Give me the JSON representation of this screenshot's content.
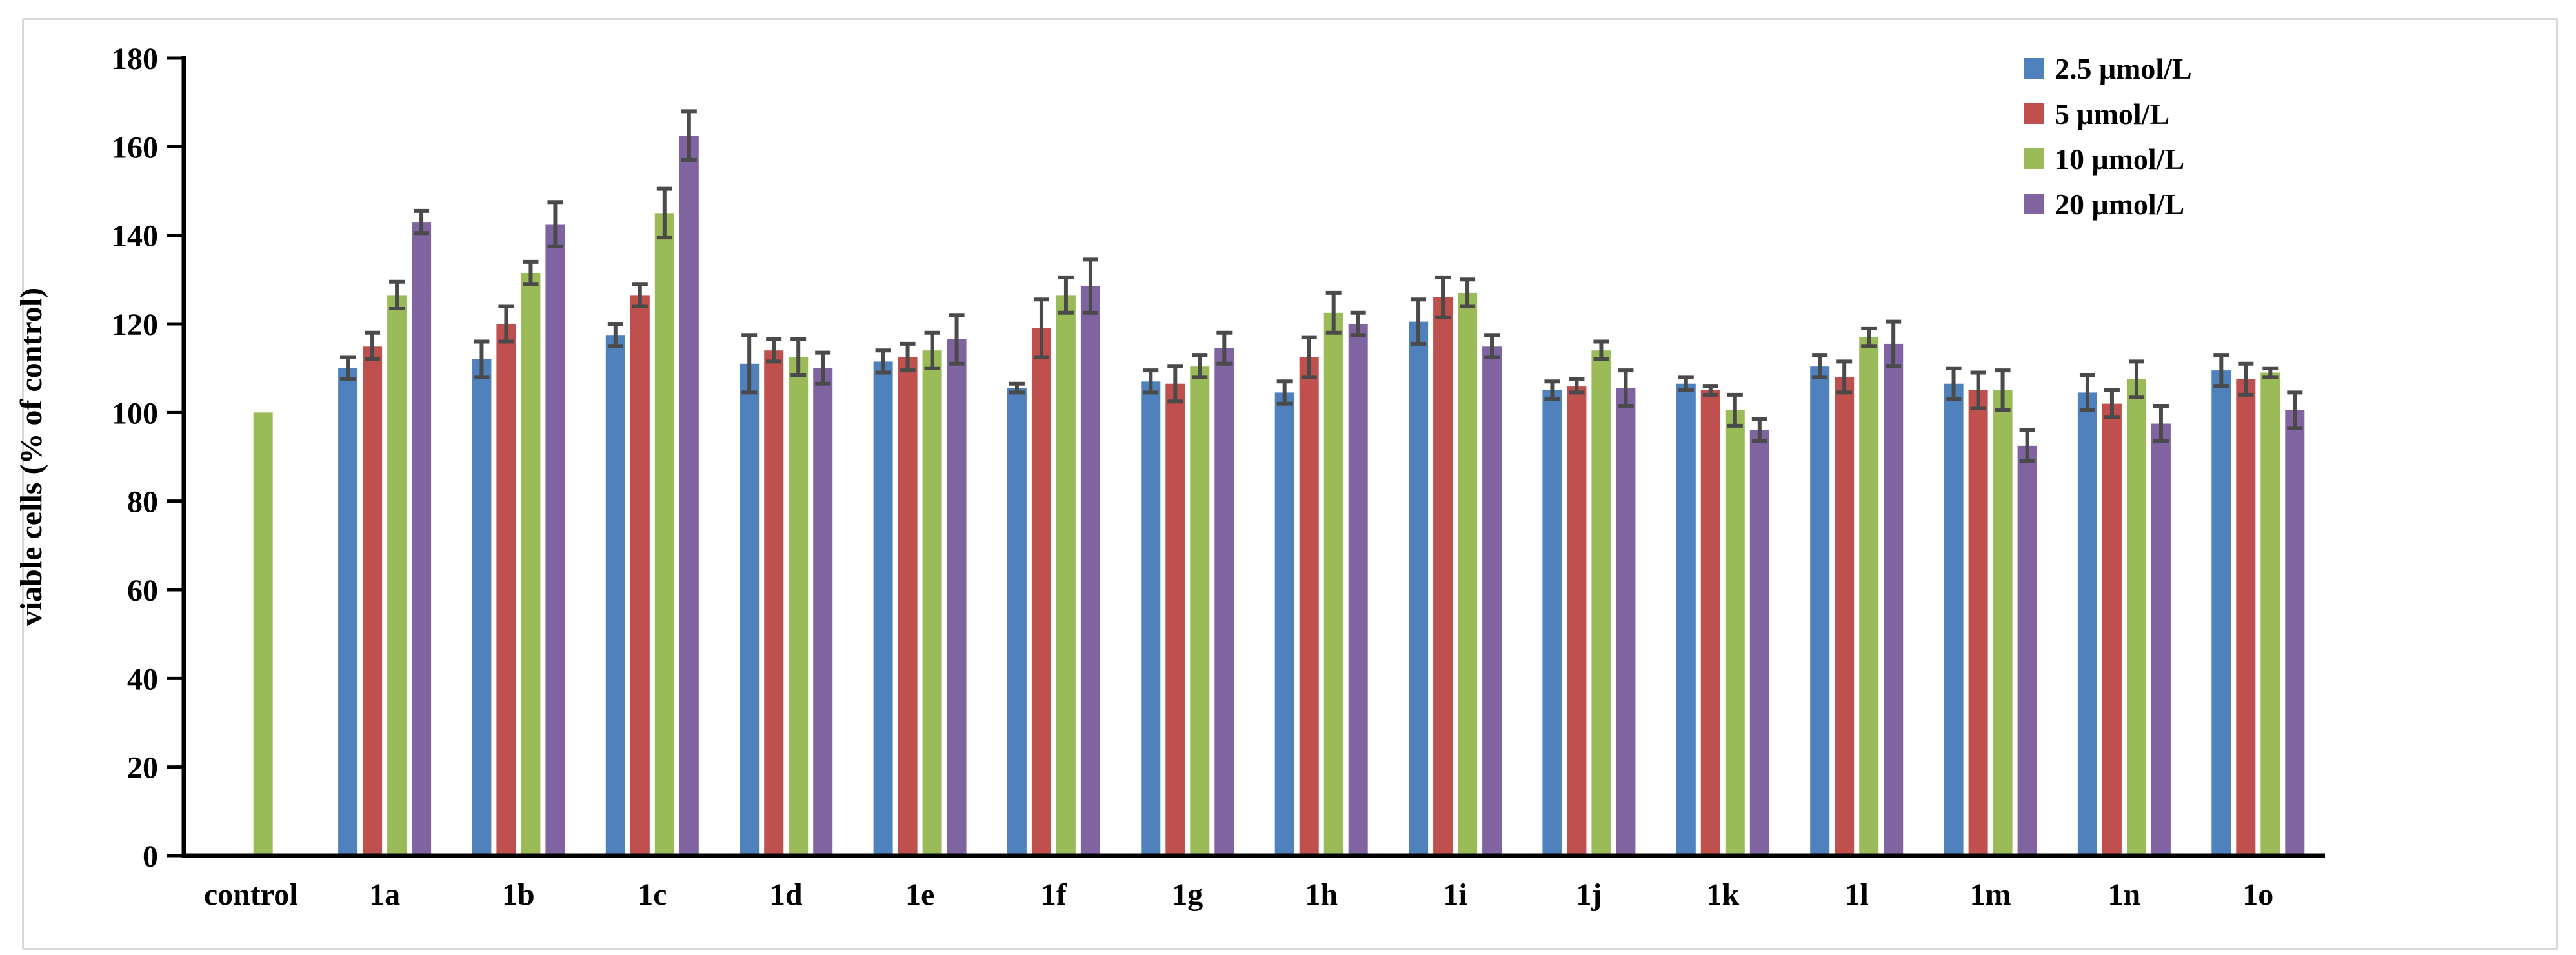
{
  "figure": {
    "background_color": "#ffffff",
    "frame_color": "#d9d9d9"
  },
  "chart_data": {
    "type": "bar",
    "title": "",
    "xlabel": "",
    "ylabel": "viable cells (% of control)",
    "ylim": [
      0,
      180
    ],
    "ytick_step": 20,
    "grid": false,
    "legend_position": "top-right-inside",
    "axis_color": "#000000",
    "error_bar_color": "#4a4a4a",
    "categories": [
      "control",
      "1a",
      "1b",
      "1c",
      "1d",
      "1e",
      "1f",
      "1g",
      "1h",
      "1i",
      "1j",
      "1k",
      "1l",
      "1m",
      "1n",
      "1o"
    ],
    "series": [
      {
        "name": "2.5 μmol/L",
        "color": "#4F81BD",
        "values": [
          null,
          110,
          112,
          117.5,
          111,
          111.5,
          105.5,
          107,
          104.5,
          120.5,
          105,
          106.5,
          110.5,
          106.5,
          104.5,
          109.5
        ],
        "errors": [
          null,
          2.5,
          4,
          2.5,
          6.5,
          2.5,
          1,
          2.5,
          2.5,
          5,
          2,
          1.5,
          2.5,
          3.5,
          4,
          3.5
        ]
      },
      {
        "name": "5 μmol/L",
        "color": "#C0504D",
        "values": [
          null,
          115,
          120,
          126.5,
          114,
          112.5,
          119,
          106.5,
          112.5,
          126,
          106,
          105,
          108,
          105,
          102,
          107.5
        ],
        "errors": [
          null,
          3,
          4,
          2.5,
          2.5,
          3,
          6.5,
          4,
          4.5,
          4.5,
          1.5,
          1,
          3.5,
          4,
          3,
          3.5
        ]
      },
      {
        "name": "10 μmol/L",
        "color": "#9BBB59",
        "values": [
          100,
          126.5,
          131.5,
          145,
          112.5,
          114,
          126.5,
          110.5,
          122.5,
          127,
          114,
          100.5,
          117,
          105,
          107.5,
          109
        ],
        "errors": [
          0,
          3,
          2.5,
          5.5,
          4,
          4,
          4,
          2.5,
          4.5,
          3,
          2,
          3.5,
          2,
          4.5,
          4,
          1
        ]
      },
      {
        "name": "20 μmol/L",
        "color": "#8064A2",
        "values": [
          null,
          143,
          142.5,
          162.5,
          110,
          116.5,
          128.5,
          114.5,
          120,
          115,
          105.5,
          96,
          115.5,
          92.5,
          97.5,
          100.5
        ],
        "errors": [
          null,
          2.5,
          5,
          5.5,
          3.5,
          5.5,
          6,
          3.5,
          2.5,
          2.5,
          4,
          2.5,
          5,
          3.5,
          4,
          4
        ]
      }
    ]
  }
}
